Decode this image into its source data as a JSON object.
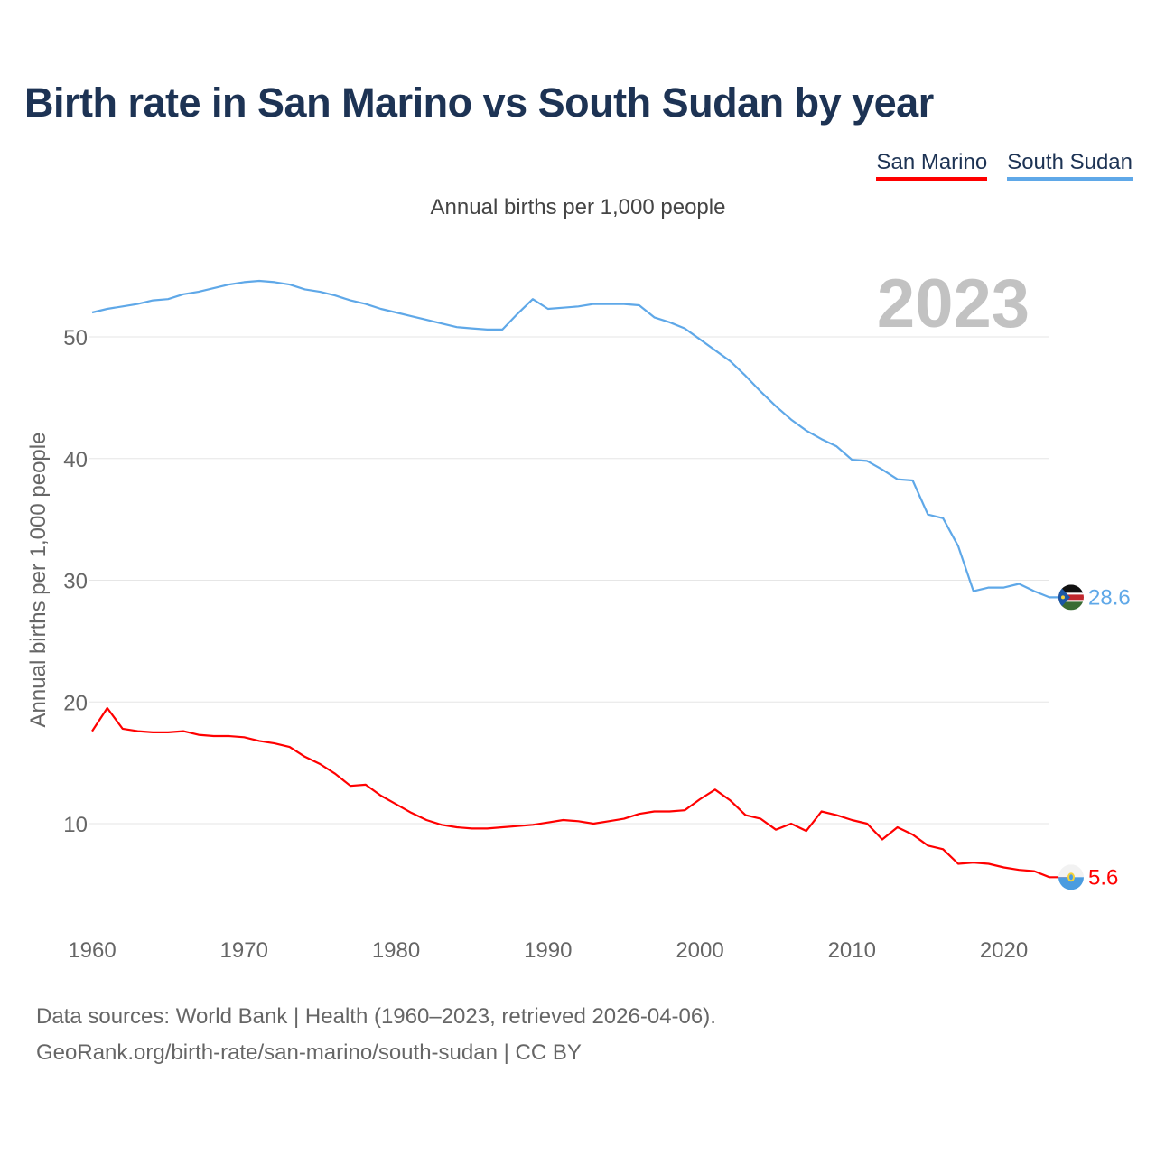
{
  "title": "Birth rate in San Marino vs South Sudan by year",
  "subtitle": "Annual births per 1,000 people",
  "legend": [
    {
      "name": "San Marino",
      "color": "#ff0000"
    },
    {
      "name": "South Sudan",
      "color": "#5fa8e8"
    }
  ],
  "year_label": "2023",
  "footer": {
    "line1": "Data sources: World Bank | Health (1960–2023, retrieved 2026-04-06).",
    "line2": "GeoRank.org/birth-rate/san-marino/south-sudan | CC BY"
  },
  "chart_data": {
    "type": "line",
    "title": "Birth rate in San Marino vs South Sudan by year",
    "xlabel": "",
    "ylabel": "Annual births per 1,000 people",
    "xlim": [
      1960,
      2023
    ],
    "ylim": [
      3,
      57
    ],
    "xticks": [
      1960,
      1970,
      1980,
      1990,
      2000,
      2010,
      2020
    ],
    "yticks": [
      10,
      20,
      30,
      40,
      50
    ],
    "grid": true,
    "x": [
      1960,
      1961,
      1962,
      1963,
      1964,
      1965,
      1966,
      1967,
      1968,
      1969,
      1970,
      1971,
      1972,
      1973,
      1974,
      1975,
      1976,
      1977,
      1978,
      1979,
      1980,
      1981,
      1982,
      1983,
      1984,
      1985,
      1986,
      1987,
      1988,
      1989,
      1990,
      1991,
      1992,
      1993,
      1994,
      1995,
      1996,
      1997,
      1998,
      1999,
      2000,
      2001,
      2002,
      2003,
      2004,
      2005,
      2006,
      2007,
      2008,
      2009,
      2010,
      2011,
      2012,
      2013,
      2014,
      2015,
      2016,
      2017,
      2018,
      2019,
      2020,
      2021,
      2022,
      2023
    ],
    "series": [
      {
        "name": "San Marino",
        "color": "#ff0000",
        "end_label": "5.6",
        "values": [
          17.6,
          19.5,
          17.8,
          17.6,
          17.5,
          17.5,
          17.6,
          17.3,
          17.2,
          17.2,
          17.1,
          16.8,
          16.6,
          16.3,
          15.5,
          14.9,
          14.1,
          13.1,
          13.2,
          12.3,
          11.6,
          10.9,
          10.3,
          9.9,
          9.7,
          9.6,
          9.6,
          9.7,
          9.8,
          9.9,
          10.1,
          10.3,
          10.2,
          10.0,
          10.2,
          10.4,
          10.8,
          11.0,
          11.0,
          11.1,
          12.0,
          12.8,
          11.9,
          10.7,
          10.4,
          9.5,
          10.0,
          9.4,
          11.0,
          10.7,
          10.3,
          10.0,
          8.7,
          9.7,
          9.1,
          8.2,
          7.9,
          6.7,
          6.8,
          6.7,
          6.4,
          6.2,
          6.1,
          5.6
        ]
      },
      {
        "name": "South Sudan",
        "color": "#5fa8e8",
        "end_label": "28.6",
        "values": [
          52.0,
          52.3,
          52.5,
          52.7,
          53.0,
          53.1,
          53.5,
          53.7,
          54.0,
          54.3,
          54.5,
          54.6,
          54.5,
          54.3,
          53.9,
          53.7,
          53.4,
          53.0,
          52.7,
          52.3,
          52.0,
          51.7,
          51.4,
          51.1,
          50.8,
          50.7,
          50.6,
          50.6,
          51.9,
          53.1,
          52.3,
          52.4,
          52.5,
          52.7,
          52.7,
          52.7,
          52.6,
          51.6,
          51.2,
          50.7,
          49.8,
          48.9,
          48.0,
          46.8,
          45.5,
          44.3,
          43.2,
          42.3,
          41.6,
          41.0,
          39.9,
          39.8,
          39.1,
          38.3,
          38.2,
          35.4,
          35.1,
          32.8,
          29.1,
          29.4,
          29.4,
          29.7,
          29.1,
          28.6
        ]
      }
    ]
  }
}
